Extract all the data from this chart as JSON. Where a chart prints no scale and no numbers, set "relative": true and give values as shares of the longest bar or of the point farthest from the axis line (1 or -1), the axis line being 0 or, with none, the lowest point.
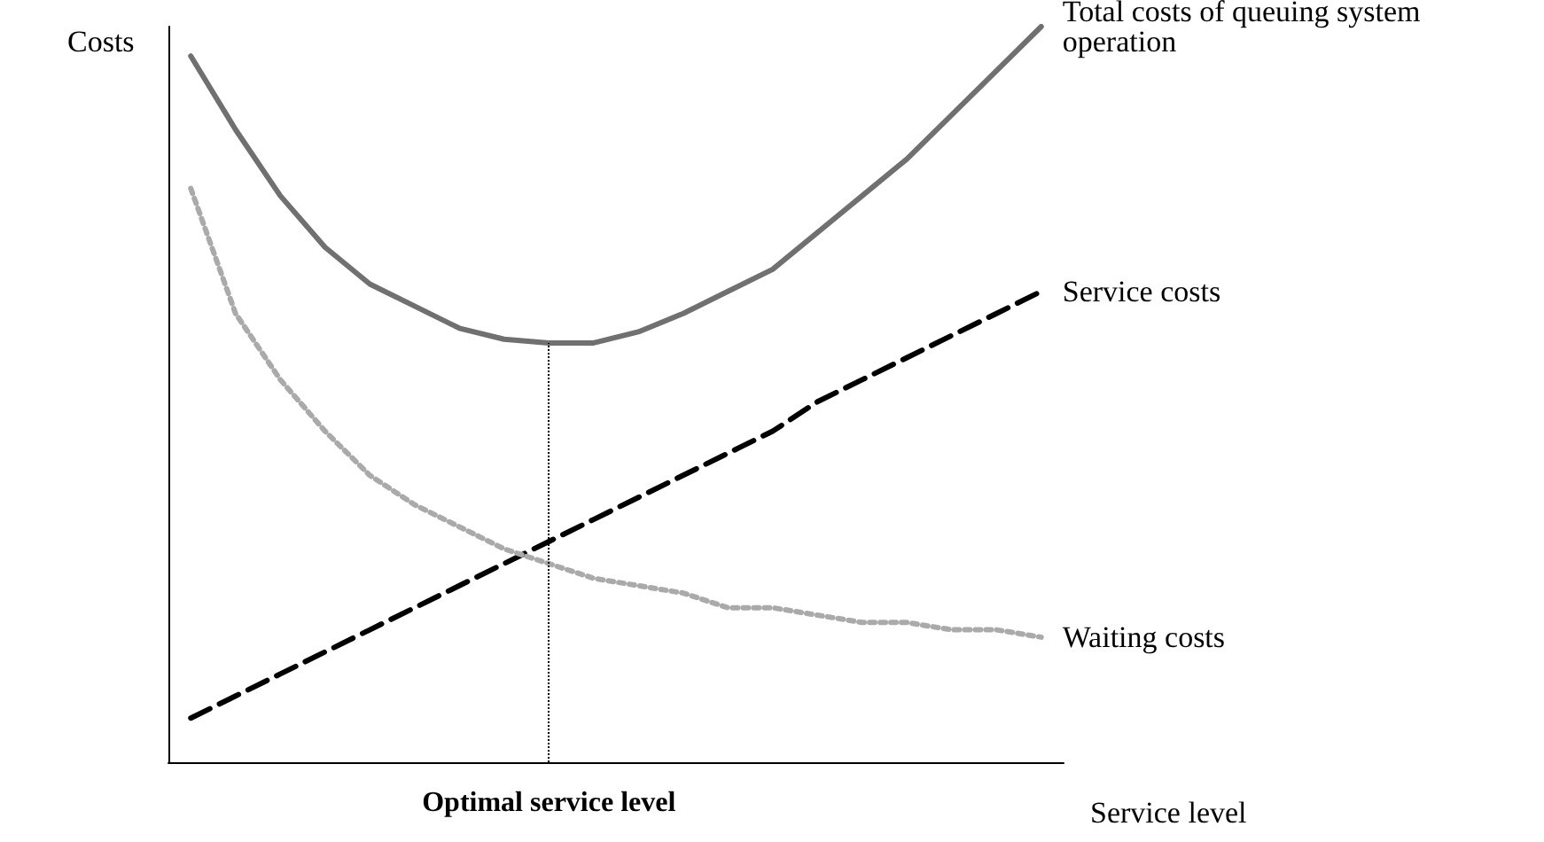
{
  "chart_data": {
    "type": "line",
    "relative": true,
    "xlabel": "Service level",
    "ylabel": "Costs",
    "categories": [
      null,
      null,
      null,
      null,
      null,
      null,
      null,
      null,
      null,
      null,
      null,
      null,
      null,
      null,
      null,
      null,
      null,
      null,
      null,
      null
    ],
    "series": [
      {
        "name": "Total costs of queuing system operation",
        "color": "#707070",
        "line_style": "solid",
        "values": [
          0.96,
          0.86,
          0.77,
          0.7,
          0.65,
          0.62,
          0.59,
          0.575,
          0.57,
          0.57,
          0.585,
          0.61,
          0.64,
          0.67,
          0.72,
          0.77,
          0.82,
          0.88,
          0.94,
          1.0
        ]
      },
      {
        "name": "Service costs",
        "color": "#000000",
        "line_style": "dashed",
        "values": [
          0.06,
          0.09,
          0.12,
          0.15,
          0.18,
          0.21,
          0.24,
          0.27,
          0.3,
          0.33,
          0.36,
          0.39,
          0.42,
          0.45,
          0.49,
          0.52,
          0.55,
          0.58,
          0.61,
          0.64
        ]
      },
      {
        "name": "Waiting costs",
        "color": "#aaaaaa",
        "line_style": "dotted",
        "values": [
          0.78,
          0.61,
          0.52,
          0.45,
          0.39,
          0.35,
          0.32,
          0.29,
          0.27,
          0.25,
          0.24,
          0.23,
          0.21,
          0.21,
          0.2,
          0.19,
          0.19,
          0.18,
          0.18,
          0.17
        ]
      }
    ],
    "ref_lines": [
      {
        "axis": "x",
        "label": "Optimal service level",
        "color": "#000000",
        "line_style": "dotted"
      }
    ],
    "legend": false,
    "grid": false,
    "marker": "none"
  }
}
